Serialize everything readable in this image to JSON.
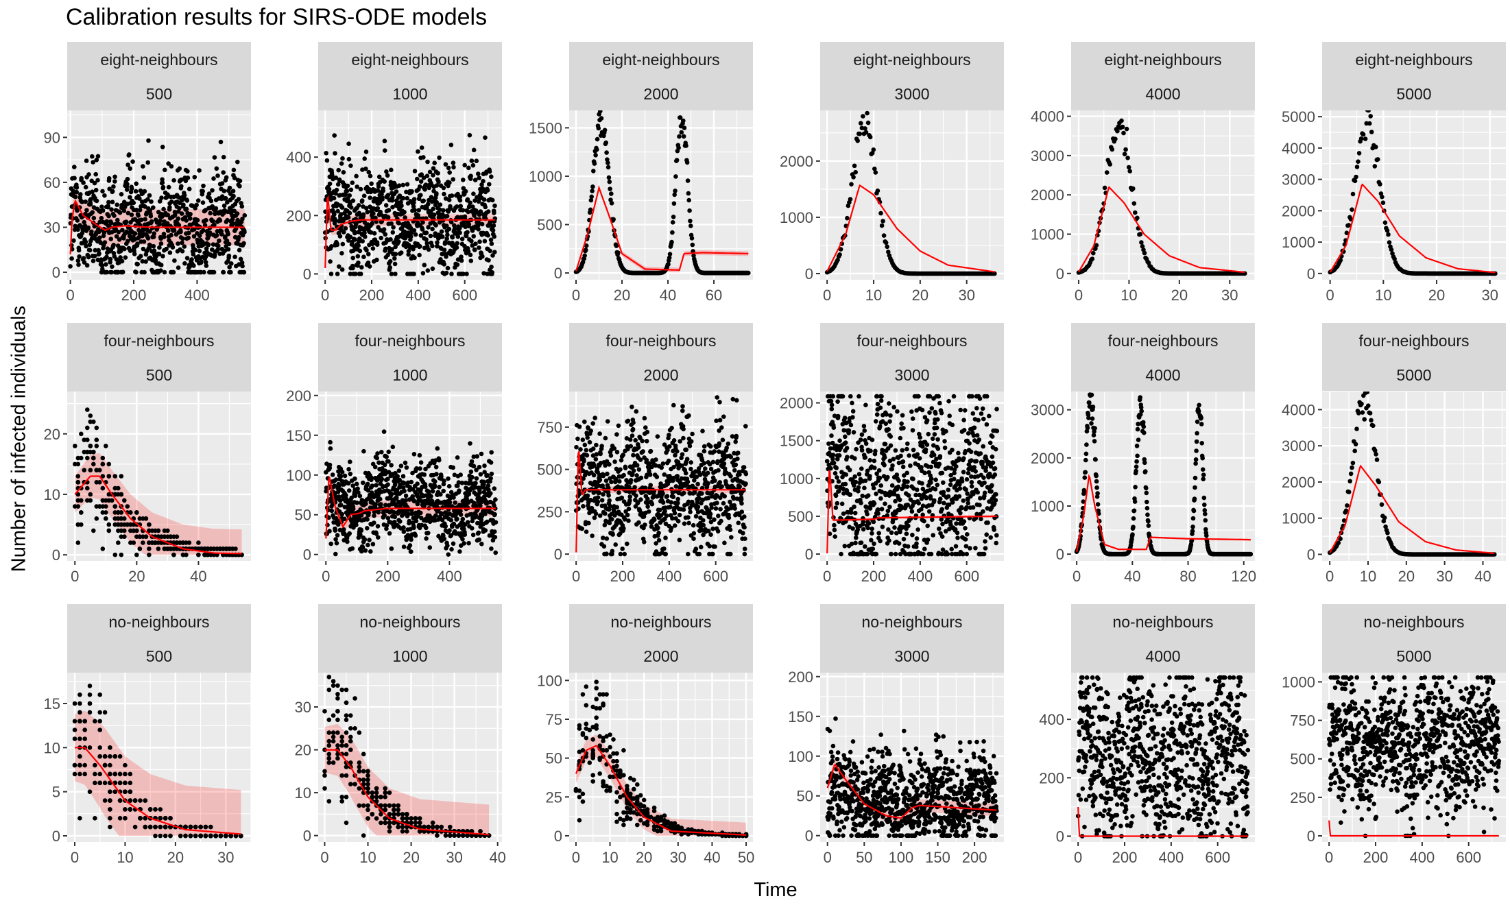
{
  "title": "Calibration results for SIRS-ODE models",
  "xlabel": "Time",
  "ylabel": "Number of infected individuals",
  "colors": {
    "panel_bg": "#EBEBEB",
    "strip_bg": "#D9D9D9",
    "grid": "#FFFFFF",
    "points": "#000000",
    "fit_line": "#FF0000",
    "ribbon": "#FF0000"
  },
  "chart_data": [
    {
      "type": "scatter",
      "strip": [
        "eight-neighbours",
        "500"
      ],
      "xlim": [
        -10,
        570
      ],
      "ylim": [
        -5,
        108
      ],
      "xticks": [
        0,
        200,
        400
      ],
      "yticks": [
        0,
        30,
        60,
        90
      ],
      "pattern": "noise",
      "tmax": 550,
      "level": 30,
      "spread": 35,
      "fit": [
        [
          0,
          12
        ],
        [
          5,
          35
        ],
        [
          15,
          48
        ],
        [
          40,
          38
        ],
        [
          80,
          32
        ],
        [
          110,
          28
        ],
        [
          130,
          30
        ],
        [
          170,
          31
        ],
        [
          250,
          30
        ],
        [
          550,
          30
        ]
      ],
      "band": 12
    },
    {
      "type": "scatter",
      "strip": [
        "eight-neighbours",
        "1000"
      ],
      "xlim": [
        -30,
        760
      ],
      "ylim": [
        -20,
        560
      ],
      "xticks": [
        0,
        200,
        400,
        600
      ],
      "yticks": [
        0,
        200,
        400
      ],
      "pattern": "noise",
      "tmax": 730,
      "level": 190,
      "spread": 170,
      "fit": [
        [
          0,
          20
        ],
        [
          10,
          280
        ],
        [
          25,
          150
        ],
        [
          45,
          150
        ],
        [
          70,
          170
        ],
        [
          110,
          180
        ],
        [
          150,
          185
        ],
        [
          730,
          185
        ]
      ],
      "band": 20
    },
    {
      "type": "scatter",
      "strip": [
        "eight-neighbours",
        "2000"
      ],
      "xlim": [
        -3,
        77
      ],
      "ylim": [
        -70,
        1680
      ],
      "xticks": [
        0,
        20,
        40,
        60
      ],
      "yticks": [
        0,
        500,
        1000,
        1500
      ],
      "pattern": "waves",
      "tmax": 75,
      "waves": [
        [
          11,
          1580,
          3.5
        ],
        [
          46,
          1620,
          2.5
        ]
      ],
      "fit": [
        [
          0,
          20
        ],
        [
          5,
          400
        ],
        [
          10,
          880
        ],
        [
          15,
          550
        ],
        [
          20,
          200
        ],
        [
          30,
          40
        ],
        [
          45,
          30
        ],
        [
          47,
          200
        ],
        [
          55,
          210
        ],
        [
          75,
          200
        ]
      ],
      "band": 25
    },
    {
      "type": "scatter",
      "strip": [
        "eight-neighbours",
        "3000"
      ],
      "xlim": [
        -1.5,
        38
      ],
      "ylim": [
        -110,
        2900
      ],
      "xticks": [
        0,
        10,
        20,
        30
      ],
      "yticks": [
        0,
        1000,
        2000
      ],
      "pattern": "waves",
      "tmax": 36,
      "waves": [
        [
          8,
          2750,
          2.6
        ]
      ],
      "fit": [
        [
          0,
          40
        ],
        [
          4,
          700
        ],
        [
          7,
          1570
        ],
        [
          10,
          1400
        ],
        [
          15,
          800
        ],
        [
          20,
          400
        ],
        [
          26,
          150
        ],
        [
          36,
          30
        ]
      ],
      "band": 0
    },
    {
      "type": "scatter",
      "strip": [
        "eight-neighbours",
        "4000"
      ],
      "xlim": [
        -1.5,
        35
      ],
      "ylim": [
        -160,
        4150
      ],
      "xticks": [
        0,
        10,
        20,
        30
      ],
      "yticks": [
        0,
        1000,
        2000,
        3000,
        4000
      ],
      "pattern": "waves",
      "tmax": 33,
      "waves": [
        [
          8,
          3900,
          2.5
        ]
      ],
      "fit": [
        [
          0,
          40
        ],
        [
          3,
          700
        ],
        [
          6,
          2200
        ],
        [
          9,
          1800
        ],
        [
          13,
          1000
        ],
        [
          18,
          450
        ],
        [
          24,
          150
        ],
        [
          33,
          30
        ]
      ],
      "band": 0
    },
    {
      "type": "scatter",
      "strip": [
        "eight-neighbours",
        "5000"
      ],
      "xlim": [
        -1.5,
        33
      ],
      "ylim": [
        -200,
        5200
      ],
      "xticks": [
        0,
        10,
        20,
        30
      ],
      "yticks": [
        0,
        1000,
        2000,
        3000,
        4000,
        5000
      ],
      "pattern": "waves",
      "tmax": 31,
      "waves": [
        [
          7,
          4950,
          2.3
        ]
      ],
      "fit": [
        [
          0,
          40
        ],
        [
          3,
          900
        ],
        [
          6,
          2850
        ],
        [
          9,
          2300
        ],
        [
          13,
          1200
        ],
        [
          18,
          500
        ],
        [
          24,
          150
        ],
        [
          31,
          30
        ]
      ],
      "band": 0
    },
    {
      "type": "scatter",
      "strip": [
        "four-neighbours",
        "500"
      ],
      "xlim": [
        -2.5,
        57
      ],
      "ylim": [
        -1,
        27
      ],
      "xticks": [
        0,
        20,
        40
      ],
      "yticks": [
        0,
        10,
        20
      ],
      "pattern": "decay",
      "tmax": 54,
      "start": 10,
      "peak": 15,
      "peakT": 5,
      "decay": 0.08,
      "fit": [
        [
          0,
          10
        ],
        [
          5,
          13
        ],
        [
          8,
          13
        ],
        [
          12,
          10
        ],
        [
          18,
          6
        ],
        [
          25,
          3
        ],
        [
          35,
          1
        ],
        [
          45,
          0.3
        ],
        [
          54,
          0.2
        ]
      ],
      "band": 4
    },
    {
      "type": "scatter",
      "strip": [
        "four-neighbours",
        "1000"
      ],
      "xlim": [
        -25,
        570
      ],
      "ylim": [
        -8,
        205
      ],
      "xticks": [
        0,
        200,
        400
      ],
      "yticks": [
        0,
        50,
        100,
        150,
        200
      ],
      "pattern": "noise",
      "tmax": 550,
      "level": 65,
      "spread": 50,
      "fit": [
        [
          0,
          20
        ],
        [
          10,
          100
        ],
        [
          30,
          60
        ],
        [
          55,
          35
        ],
        [
          80,
          50
        ],
        [
          110,
          52
        ],
        [
          125,
          55
        ],
        [
          200,
          58
        ],
        [
          550,
          58
        ]
      ],
      "band": 10
    },
    {
      "type": "scatter",
      "strip": [
        "four-neighbours",
        "2000"
      ],
      "xlim": [
        -30,
        760
      ],
      "ylim": [
        -40,
        960
      ],
      "xticks": [
        0,
        200,
        400,
        600
      ],
      "yticks": [
        0,
        250,
        500,
        750
      ],
      "pattern": "noise",
      "tmax": 730,
      "level": 390,
      "spread": 330,
      "fit": [
        [
          0,
          10
        ],
        [
          10,
          650
        ],
        [
          25,
          350
        ],
        [
          40,
          380
        ],
        [
          730,
          380
        ]
      ],
      "band": 20
    },
    {
      "type": "scatter",
      "strip": [
        "four-neighbours",
        "3000"
      ],
      "xlim": [
        -30,
        760
      ],
      "ylim": [
        -90,
        2150
      ],
      "xticks": [
        0,
        200,
        400,
        600
      ],
      "yticks": [
        0,
        500,
        1000,
        1500,
        2000
      ],
      "pattern": "noise",
      "tmax": 730,
      "level": 900,
      "spread": 1050,
      "fit": [
        [
          0,
          10
        ],
        [
          10,
          1200
        ],
        [
          25,
          450
        ],
        [
          50,
          450
        ],
        [
          200,
          460
        ],
        [
          220,
          480
        ],
        [
          730,
          500
        ]
      ],
      "band": 20
    },
    {
      "type": "scatter",
      "strip": [
        "four-neighbours",
        "4000"
      ],
      "xlim": [
        -4,
        128
      ],
      "ylim": [
        -140,
        3380
      ],
      "xticks": [
        0,
        40,
        80,
        120
      ],
      "yticks": [
        0,
        1000,
        2000,
        3000
      ],
      "pattern": "waves",
      "tmax": 125,
      "waves": [
        [
          10,
          3250,
          3.5
        ],
        [
          46,
          3150,
          3
        ],
        [
          88,
          3150,
          2.5
        ]
      ],
      "fit": [
        [
          0,
          50
        ],
        [
          5,
          800
        ],
        [
          9,
          1650
        ],
        [
          13,
          1000
        ],
        [
          20,
          200
        ],
        [
          30,
          100
        ],
        [
          50,
          100
        ],
        [
          53,
          350
        ],
        [
          80,
          320
        ],
        [
          125,
          300
        ]
      ],
      "band": 20
    },
    {
      "type": "scatter",
      "strip": [
        "four-neighbours",
        "5000"
      ],
      "xlim": [
        -2,
        46
      ],
      "ylim": [
        -180,
        4500
      ],
      "xticks": [
        0,
        10,
        20,
        30,
        40
      ],
      "yticks": [
        0,
        1000,
        2000,
        3000,
        4000
      ],
      "pattern": "waves",
      "tmax": 43,
      "waves": [
        [
          9,
          4400,
          3
        ]
      ],
      "fit": [
        [
          0,
          40
        ],
        [
          4,
          800
        ],
        [
          8,
          2450
        ],
        [
          12,
          1900
        ],
        [
          18,
          900
        ],
        [
          25,
          350
        ],
        [
          33,
          120
        ],
        [
          43,
          30
        ]
      ],
      "band": 0
    },
    {
      "type": "scatter",
      "strip": [
        "no-neighbours",
        "500"
      ],
      "xlim": [
        -1.5,
        35
      ],
      "ylim": [
        -0.7,
        18.5
      ],
      "xticks": [
        0,
        10,
        20,
        30
      ],
      "yticks": [
        0,
        5,
        10,
        15
      ],
      "pattern": "decay",
      "tmax": 33,
      "start": 10,
      "peak": 13,
      "peakT": 3,
      "decay": 0.15,
      "fit": [
        [
          0,
          10
        ],
        [
          2,
          10
        ],
        [
          5,
          8
        ],
        [
          10,
          4
        ],
        [
          15,
          2
        ],
        [
          22,
          0.7
        ],
        [
          33,
          0.2
        ]
      ],
      "band": 5
    },
    {
      "type": "scatter",
      "strip": [
        "no-neighbours",
        "1000"
      ],
      "xlim": [
        -1.5,
        41
      ],
      "ylim": [
        -1.5,
        38
      ],
      "xticks": [
        0,
        10,
        20,
        30,
        40
      ],
      "yticks": [
        0,
        10,
        20,
        30
      ],
      "pattern": "decay",
      "tmax": 38,
      "start": 20,
      "peak": 26,
      "peakT": 3,
      "decay": 0.13,
      "fit": [
        [
          0,
          20
        ],
        [
          3,
          20
        ],
        [
          6,
          16
        ],
        [
          10,
          9
        ],
        [
          15,
          4
        ],
        [
          22,
          1.5
        ],
        [
          38,
          0.2
        ]
      ],
      "band": 7
    },
    {
      "type": "scatter",
      "strip": [
        "no-neighbours",
        "2000"
      ],
      "xlim": [
        -2,
        52
      ],
      "ylim": [
        -4,
        105
      ],
      "xticks": [
        0,
        10,
        20,
        30,
        40,
        50
      ],
      "yticks": [
        0,
        25,
        50,
        75,
        100
      ],
      "pattern": "decay",
      "tmax": 50,
      "start": 40,
      "peak": 75,
      "peakT": 6,
      "decay": 0.12,
      "fit": [
        [
          0,
          40
        ],
        [
          3,
          55
        ],
        [
          6,
          58
        ],
        [
          10,
          45
        ],
        [
          15,
          25
        ],
        [
          20,
          12
        ],
        [
          28,
          3
        ],
        [
          50,
          0.5
        ]
      ],
      "band": 8
    },
    {
      "type": "scatter",
      "strip": [
        "no-neighbours",
        "3000"
      ],
      "xlim": [
        -10,
        240
      ],
      "ylim": [
        -8,
        205
      ],
      "xticks": [
        0,
        50,
        100,
        150,
        200
      ],
      "yticks": [
        0,
        50,
        100,
        150,
        200
      ],
      "pattern": "noise",
      "tmax": 230,
      "level": 45,
      "spread": 55,
      "fit": [
        [
          0,
          60
        ],
        [
          10,
          90
        ],
        [
          25,
          70
        ],
        [
          50,
          40
        ],
        [
          80,
          25
        ],
        [
          100,
          22
        ],
        [
          115,
          35
        ],
        [
          125,
          38
        ],
        [
          230,
          32
        ]
      ],
      "band": 8
    },
    {
      "type": "scatter",
      "strip": [
        "no-neighbours",
        "4000"
      ],
      "xlim": [
        -30,
        760
      ],
      "ylim": [
        -20,
        560
      ],
      "xticks": [
        0,
        200,
        400,
        600
      ],
      "yticks": [
        0,
        200,
        400
      ],
      "pattern": "noise",
      "tmax": 730,
      "level": 270,
      "spread": 250,
      "fit": [
        [
          0,
          100
        ],
        [
          5,
          0
        ],
        [
          730,
          0
        ]
      ],
      "band": 0
    },
    {
      "type": "scatter",
      "strip": [
        "no-neighbours",
        "5000"
      ],
      "xlim": [
        -30,
        760
      ],
      "ylim": [
        -40,
        1060
      ],
      "xticks": [
        0,
        200,
        400,
        600
      ],
      "yticks": [
        0,
        250,
        500,
        750,
        1000
      ],
      "pattern": "noise",
      "tmax": 730,
      "level": 600,
      "spread": 400,
      "fit": [
        [
          0,
          100
        ],
        [
          5,
          0
        ],
        [
          730,
          0
        ]
      ],
      "band": 0
    }
  ]
}
